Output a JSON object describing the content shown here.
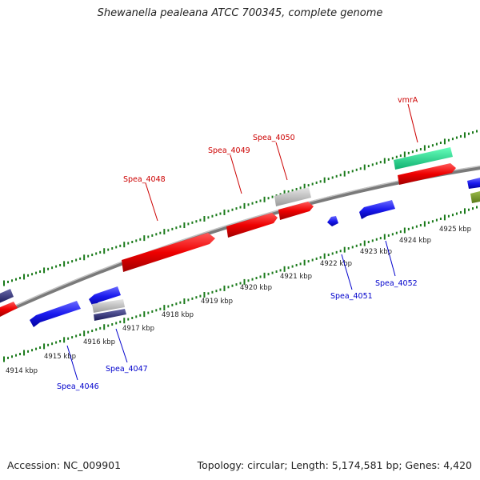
{
  "title": "Shewanella pealeana ATCC 700345, complete genome",
  "footer": {
    "accession": "Accession: NC_009901",
    "stats": "Topology: circular; Length: 5,174,581 bp; Genes: 4,420"
  },
  "colors": {
    "forward": "#ff0000",
    "reverse": "#0000ee",
    "forward_label": "#cc0000",
    "reverse_label": "#0000cc",
    "axis": "#8c8c8c",
    "tick": "#1a7a1a",
    "rna": "#33ee99",
    "grey": "#c8c8c8",
    "olive": "#7a9a2a",
    "dark_reverse": "#2a2a7a"
  },
  "scale": {
    "unit": "kbp",
    "labels": [
      "4914 kbp",
      "4915 kbp",
      "4916 kbp",
      "4917 kbp",
      "4918 kbp",
      "4919 kbp",
      "4920 kbp",
      "4921 kbp",
      "4922 kbp",
      "4923 kbp",
      "4924 kbp",
      "4925 kbp"
    ]
  },
  "genes": [
    {
      "name": "Spea_4046",
      "strand": "reverse"
    },
    {
      "name": "Spea_4047",
      "strand": "reverse"
    },
    {
      "name": "Spea_4048",
      "strand": "forward"
    },
    {
      "name": "Spea_4049",
      "strand": "forward"
    },
    {
      "name": "Spea_4050",
      "strand": "forward"
    },
    {
      "name": "Spea_4051",
      "strand": "reverse"
    },
    {
      "name": "Spea_4052",
      "strand": "reverse"
    },
    {
      "name": "vmrA",
      "strand": "forward"
    }
  ]
}
